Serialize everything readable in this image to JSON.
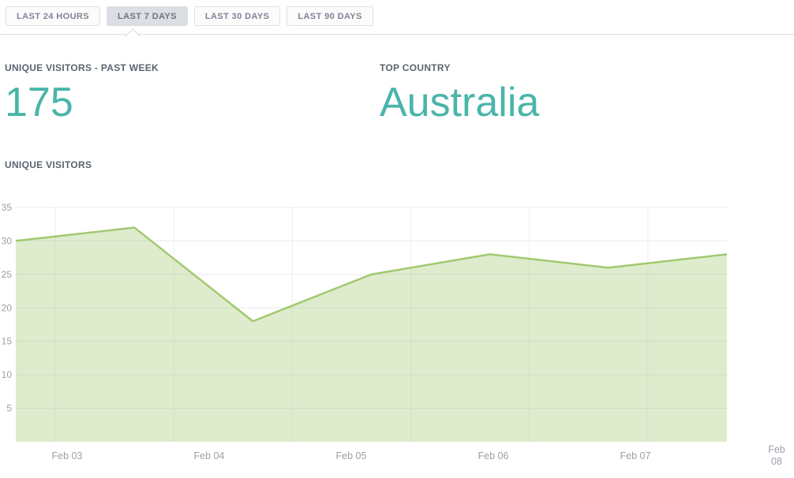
{
  "tabs": {
    "items": [
      "LAST 24 HOURS",
      "LAST 7 DAYS",
      "LAST 30 DAYS",
      "LAST 90 DAYS"
    ],
    "selected_index": 1
  },
  "stats": {
    "unique_visitors": {
      "label": "UNIQUE VISITORS - PAST WEEK",
      "value": "175"
    },
    "top_country": {
      "label": "TOP COUNTRY",
      "value": "Australia"
    }
  },
  "chart_data": {
    "type": "area",
    "title": "UNIQUE VISITORS",
    "x_labels": [
      "Feb 03",
      "Feb 04",
      "Feb 05",
      "Feb 06",
      "Feb 07",
      "Feb 08"
    ],
    "values": [
      30,
      32,
      18,
      25,
      28,
      26,
      28
    ],
    "y_ticks": [
      5,
      10,
      15,
      20,
      25,
      30,
      35
    ],
    "ylim": [
      0,
      35
    ],
    "grid": true,
    "legend": "none"
  },
  "colors": {
    "accent_teal": "#4ab5a9",
    "heading": "#5b6470",
    "line_green": "#a1c96f",
    "fill_green": "rgba(161,201,111,0.35)",
    "h_gridline": "#e7e9eb",
    "v_gridline": "#edeff1",
    "axis_text": "#9aa1a9",
    "tab_text": "#7d8591",
    "tab_selected_bg": "#dbdee3",
    "border": "#dcdfe3"
  }
}
